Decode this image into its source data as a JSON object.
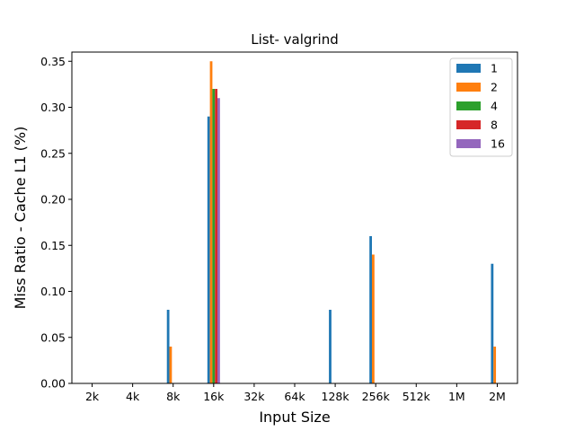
{
  "chart_data": {
    "type": "bar",
    "title": "List- valgrind",
    "xlabel": "Input Size",
    "ylabel": "Miss Ratio - Cache L1 (%)",
    "categories": [
      "2k",
      "4k",
      "8k",
      "16k",
      "32k",
      "64k",
      "128k",
      "256k",
      "512k",
      "1M",
      "2M"
    ],
    "ylim": [
      0,
      0.36
    ],
    "yticks": [
      0.0,
      0.05,
      0.1,
      0.15,
      0.2,
      0.25,
      0.3,
      0.35
    ],
    "ytick_labels": [
      "0.00",
      "0.05",
      "0.10",
      "0.15",
      "0.20",
      "0.25",
      "0.30",
      "0.35"
    ],
    "grid": false,
    "legend_position": "top-right",
    "series": [
      {
        "name": "1",
        "color": "#1f77b4",
        "values": [
          0,
          0,
          0.08,
          0.29,
          0,
          0,
          0.08,
          0.16,
          0,
          0,
          0.13
        ]
      },
      {
        "name": "2",
        "color": "#ff7f0e",
        "values": [
          0,
          0,
          0.04,
          0.35,
          0,
          0,
          0,
          0.14,
          0,
          0,
          0.04
        ]
      },
      {
        "name": "4",
        "color": "#2ca02c",
        "values": [
          0,
          0,
          0,
          0.32,
          0,
          0,
          0,
          0,
          0,
          0,
          0
        ]
      },
      {
        "name": "8",
        "color": "#d62728",
        "values": [
          0,
          0,
          0,
          0.32,
          0,
          0,
          0,
          0,
          0,
          0,
          0
        ]
      },
      {
        "name": "16",
        "color": "#9467bd",
        "values": [
          0,
          0,
          0,
          0.31,
          0,
          0,
          0,
          0,
          0,
          0,
          0
        ]
      }
    ]
  }
}
